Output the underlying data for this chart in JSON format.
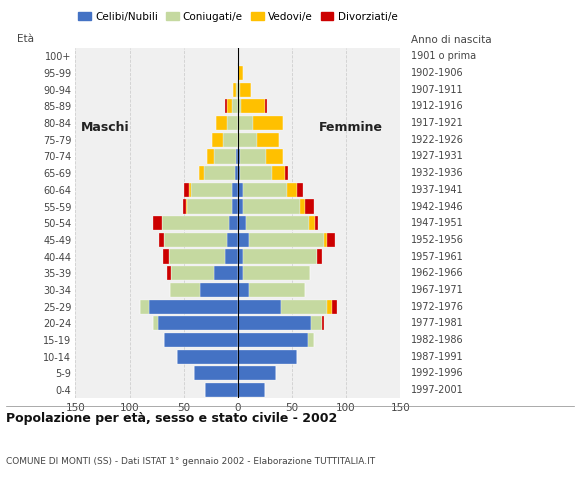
{
  "age_groups": [
    "0-4",
    "5-9",
    "10-14",
    "15-19",
    "20-24",
    "25-29",
    "30-34",
    "35-39",
    "40-44",
    "45-49",
    "50-54",
    "55-59",
    "60-64",
    "65-69",
    "70-74",
    "75-79",
    "80-84",
    "85-89",
    "90-94",
    "95-99",
    "100+"
  ],
  "birth_years": [
    "1997-2001",
    "1992-1996",
    "1987-1991",
    "1982-1986",
    "1977-1981",
    "1972-1976",
    "1967-1971",
    "1962-1966",
    "1957-1961",
    "1952-1956",
    "1947-1951",
    "1942-1946",
    "1937-1941",
    "1932-1936",
    "1927-1931",
    "1922-1926",
    "1917-1921",
    "1912-1916",
    "1907-1911",
    "1902-1906",
    "1901 o prima"
  ],
  "males": {
    "celibinubili": [
      30,
      40,
      56,
      68,
      74,
      82,
      35,
      22,
      12,
      10,
      8,
      5,
      5,
      3,
      2,
      0,
      0,
      0,
      0,
      0,
      0
    ],
    "coniugati": [
      0,
      0,
      0,
      0,
      4,
      8,
      28,
      40,
      52,
      58,
      62,
      42,
      38,
      28,
      20,
      14,
      10,
      5,
      2,
      0,
      0
    ],
    "vedovi": [
      0,
      0,
      0,
      0,
      0,
      0,
      0,
      0,
      0,
      0,
      0,
      1,
      2,
      5,
      6,
      10,
      10,
      5,
      2,
      0,
      0
    ],
    "divorziati": [
      0,
      0,
      0,
      0,
      0,
      0,
      0,
      3,
      5,
      5,
      8,
      3,
      5,
      0,
      0,
      0,
      0,
      2,
      0,
      0,
      0
    ]
  },
  "females": {
    "celibinubili": [
      25,
      35,
      55,
      65,
      68,
      40,
      10,
      5,
      5,
      10,
      8,
      5,
      5,
      2,
      2,
      0,
      0,
      0,
      0,
      0,
      0
    ],
    "coniugati": [
      0,
      0,
      0,
      5,
      10,
      42,
      52,
      62,
      68,
      70,
      58,
      52,
      40,
      30,
      24,
      18,
      14,
      3,
      2,
      0,
      0
    ],
    "vedovi": [
      0,
      0,
      0,
      0,
      0,
      5,
      0,
      0,
      0,
      2,
      5,
      5,
      10,
      12,
      16,
      20,
      28,
      22,
      10,
      5,
      0
    ],
    "divorziati": [
      0,
      0,
      0,
      0,
      2,
      5,
      0,
      0,
      5,
      8,
      3,
      8,
      5,
      2,
      0,
      0,
      0,
      2,
      0,
      0,
      0
    ]
  },
  "colors": {
    "celibinubili": "#4472c4",
    "coniugati": "#c5d9a0",
    "vedovi": "#ffc000",
    "divorziati": "#cc0000"
  },
  "title": "Popolazione per età, sesso e stato civile - 2002",
  "subtitle": "COMUNE DI MONTI (SS) - Dati ISTAT 1° gennaio 2002 - Elaborazione TUTTITALIA.IT",
  "xlabel_left": "Maschi",
  "xlabel_right": "Femmine",
  "label_eta": "Età",
  "label_anno": "Anno di nascita",
  "xlim": 150,
  "xticks": [
    -150,
    -100,
    -50,
    0,
    50,
    100,
    150
  ],
  "xticklabels": [
    "150",
    "100",
    "50",
    "0",
    "50",
    "100",
    "150"
  ],
  "legend_labels": [
    "Celibi/Nubili",
    "Coniugati/e",
    "Vedovi/e",
    "Divorziati/e"
  ],
  "background_color": "#ffffff",
  "plot_bg_color": "#f0f0f0",
  "grid_color": "#cccccc"
}
